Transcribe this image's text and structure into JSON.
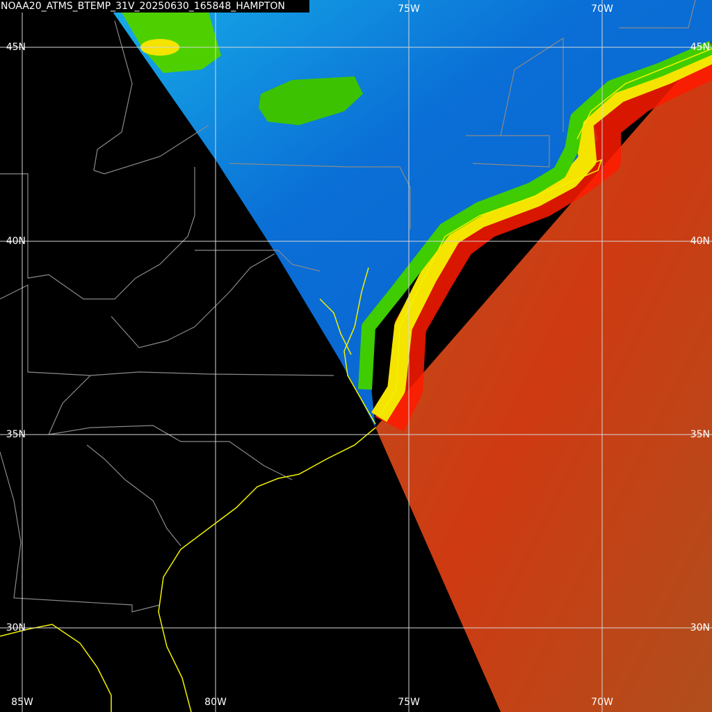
{
  "header": {
    "title": "NOAA20_ATMS_BTEMP_31V_20250630_165848_HAMPTON"
  },
  "grid": {
    "top_labels": [
      "75W",
      "70W"
    ],
    "bottom_labels": [
      "85W",
      "80W",
      "75W",
      "70W"
    ],
    "left_labels": [
      "45N",
      "40N",
      "35N",
      "30N"
    ],
    "right_labels": [
      "45N",
      "40N",
      "35N",
      "30N"
    ]
  }
}
